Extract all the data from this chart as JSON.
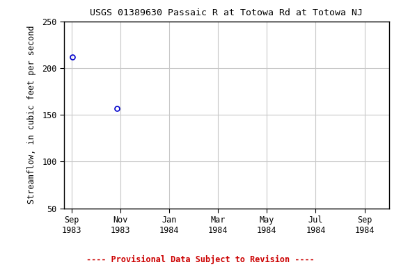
{
  "title": "USGS 01389630 Passaic R at Totowa Rd at Totowa NJ",
  "ylabel": "Streamflow, in cubic feet per second",
  "ylim": [
    50,
    250
  ],
  "yticks": [
    50,
    100,
    150,
    200,
    250
  ],
  "points": [
    {
      "date_num": 0.05,
      "value": 212
    },
    {
      "date_num": 1.85,
      "value": 157
    }
  ],
  "point_color": "#0000cc",
  "point_marker": "o",
  "point_size": 5,
  "point_facecolor": "none",
  "point_linewidth": 1.2,
  "x_tick_labels": [
    "Sep\n1983",
    "Nov\n1983",
    "Jan\n1984",
    "Mar\n1984",
    "May\n1984",
    "Jul\n1984",
    "Sep\n1984"
  ],
  "x_tick_positions": [
    0,
    2,
    4,
    6,
    8,
    10,
    12
  ],
  "xlim": [
    -0.3,
    13.0
  ],
  "footer_text": "---- Provisional Data Subject to Revision ----",
  "footer_color": "#cc0000",
  "grid_color": "#c8c8c8",
  "bg_color": "#ffffff",
  "title_fontsize": 9.5,
  "axis_fontsize": 8.5,
  "tick_fontsize": 8.5,
  "footer_fontsize": 8.5
}
